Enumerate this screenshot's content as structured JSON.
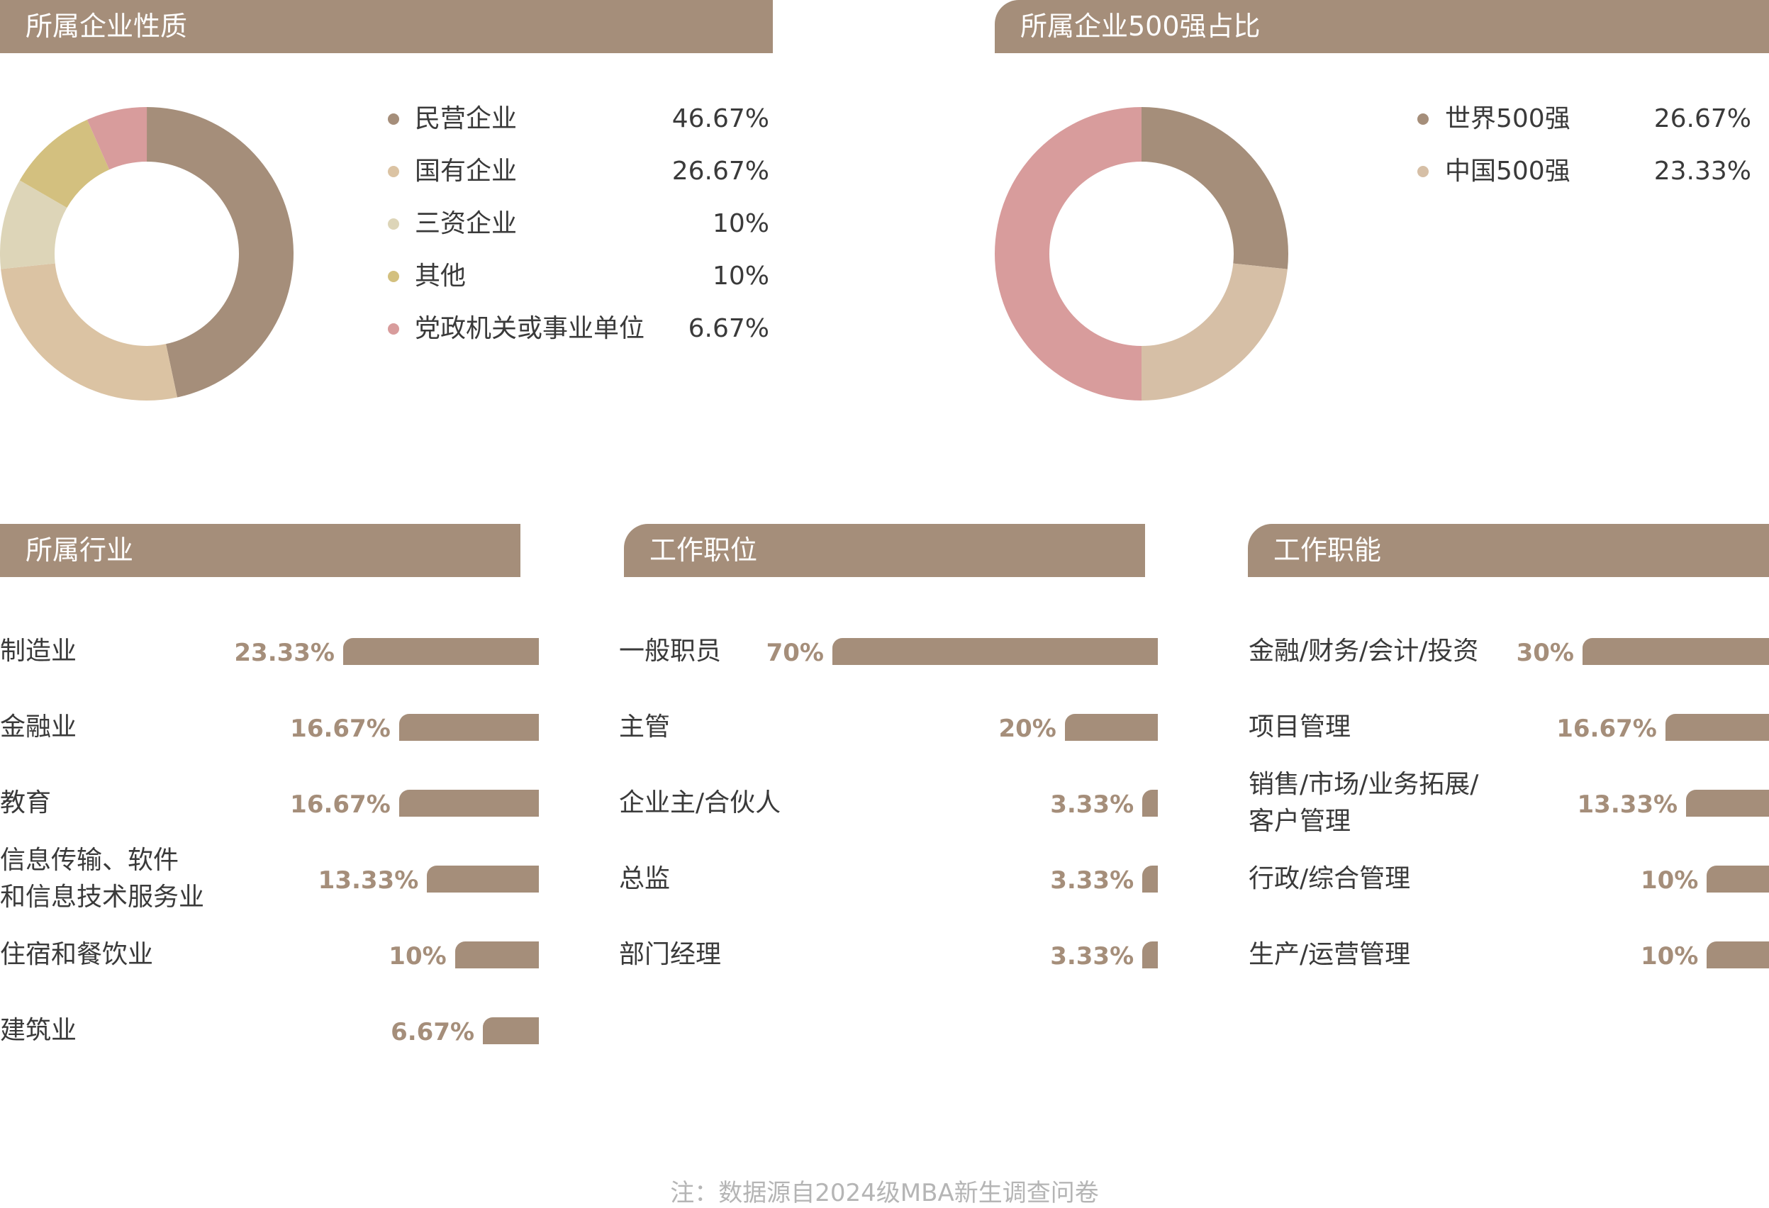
{
  "headers": {
    "company_nature": "所属企业性质",
    "top500": "所属企业500强占比",
    "industry": "所属行业",
    "position": "工作职位",
    "function": "工作职能"
  },
  "chart_data": [
    {
      "type": "pie",
      "variant": "donut",
      "title": "所属企业性质",
      "labels": [
        "民营企业",
        "国有企业",
        "三资企业",
        "其他",
        "党政机关或事业单位"
      ],
      "display": [
        "46.67%",
        "26.67%",
        "10%",
        "10%",
        "6.67%"
      ],
      "values": [
        46.67,
        26.67,
        10,
        10,
        6.67
      ],
      "colors": [
        "#a58e7a",
        "#dbc3a3",
        "#ddd5b8",
        "#d3c07f",
        "#d89c9c"
      ]
    },
    {
      "type": "pie",
      "variant": "donut",
      "title": "所属企业500强占比",
      "labels": [
        "世界500强",
        "中国500强"
      ],
      "display": [
        "26.67%",
        "23.33%"
      ],
      "values": [
        26.67,
        23.33
      ],
      "colors": [
        "#a58e7a",
        "#d6bfa6"
      ],
      "remainder_color": "#d89c9c"
    },
    {
      "type": "bar",
      "orientation": "horizontal",
      "title": "所属行业",
      "categories": [
        "制造业",
        "金融业",
        "教育",
        "信息传输、软件|和信息技术服务业",
        "住宿和餐饮业",
        "建筑业"
      ],
      "display": [
        "23.33%",
        "16.67%",
        "16.67%",
        "13.33%",
        "10%",
        "6.67%"
      ],
      "values": [
        23.33,
        16.67,
        16.67,
        13.33,
        10,
        6.67
      ]
    },
    {
      "type": "bar",
      "orientation": "horizontal",
      "title": "工作职位",
      "categories": [
        "一般职员",
        "主管",
        "企业主/合伙人",
        "总监",
        "部门经理"
      ],
      "display": [
        "70%",
        "20%",
        "3.33%",
        "3.33%",
        "3.33%"
      ],
      "values": [
        70,
        20,
        3.33,
        3.33,
        3.33
      ]
    },
    {
      "type": "bar",
      "orientation": "horizontal",
      "title": "工作职能",
      "categories": [
        "金融/财务/会计/投资",
        "项目管理",
        "销售/市场/业务拓展/|客户管理",
        "行政/综合管理",
        "生产/运营管理"
      ],
      "display": [
        "30%",
        "16.67%",
        "13.33%",
        "10%",
        "10%"
      ],
      "values": [
        30,
        16.67,
        13.33,
        10,
        10
      ]
    }
  ],
  "note": "注：数据源自2024级MBA新生调查问卷"
}
